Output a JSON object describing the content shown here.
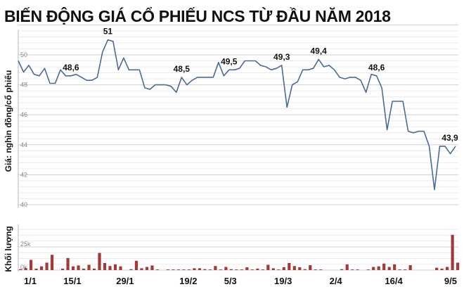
{
  "chart_data": [
    {
      "type": "line",
      "title": "BIẾN ĐỘNG GIÁ CỔ PHIẾU NCS TỪ ĐẦU NĂM 2018",
      "ylabel": "Giá: nghìn đồng/cổ phiếu",
      "ylim": [
        40,
        52
      ],
      "yticks": [
        40,
        42,
        44,
        46,
        48,
        50
      ],
      "grid": true,
      "line_color": "#4a6b96",
      "values": [
        49.6,
        48.85,
        49.3,
        48.7,
        48.6,
        49.1,
        48.1,
        48.1,
        49.0,
        48.6,
        48.6,
        48.7,
        48.5,
        48.3,
        48.3,
        48.5,
        50.2,
        51.0,
        50.9,
        49.0,
        49.8,
        49.0,
        49.0,
        49.0,
        47.8,
        47.7,
        48.0,
        48.0,
        48.0,
        47.9,
        47.5,
        48.5,
        48.0,
        48.3,
        48.5,
        48.5,
        48.5,
        48.5,
        49.5,
        48.6,
        49.0,
        49.0,
        49.1,
        49.6,
        49.6,
        49.6,
        49.3,
        49.2,
        49.0,
        49.1,
        49.3,
        46.5,
        48.0,
        48.2,
        49.0,
        49.0,
        49.1,
        49.7,
        49.2,
        49.3,
        49.0,
        48.5,
        48.4,
        48.5,
        48.5,
        48.3,
        47.5,
        48.7,
        48.6,
        47.8,
        45.0,
        46.9,
        46.9,
        46.9,
        44.9,
        44.8,
        44.9,
        44.9,
        43.9,
        41.0,
        43.9,
        43.9,
        43.4,
        43.9
      ],
      "annotations": [
        {
          "label": "48,6"
        },
        {
          "label": "51"
        },
        {
          "label": "48,5"
        },
        {
          "label": "49,5"
        },
        {
          "label": "49,3"
        },
        {
          "label": "49,4"
        },
        {
          "label": "48,6"
        },
        {
          "label": "43,9"
        }
      ]
    },
    {
      "type": "bar",
      "ylabel": "Khối lượng",
      "ytick_labels": [
        "0k",
        "25k"
      ],
      "bar_color": "#a33a3a",
      "values": [
        1,
        2.3,
        11,
        1.6,
        4,
        8,
        16.5,
        0,
        1.6,
        13,
        4,
        5,
        1.6,
        5.7,
        1.6,
        18.5,
        7.6,
        4.4,
        6.2,
        4,
        0,
        1,
        10,
        2,
        3.4,
        5,
        0.7,
        0,
        0.7,
        0.7,
        0.7,
        0.7,
        0.7,
        2,
        2,
        1,
        0.7,
        4.4,
        0.7,
        3.4,
        1,
        0.7,
        0.7,
        3,
        0.7,
        1.6,
        0.7,
        5.7,
        2,
        0.7,
        3,
        7.6,
        4.4,
        3,
        1,
        5.3,
        0.7,
        0.7,
        0,
        0,
        0,
        1,
        6.2,
        0.7,
        0.7,
        0,
        0.7,
        3.4,
        4,
        7,
        3.4,
        6.2,
        0.7,
        0.7,
        5.3,
        0,
        0,
        0,
        0,
        2.5,
        1.6,
        3.4,
        38,
        8
      ],
      "xtick_labels": [
        "1/1",
        "15/1",
        "29/1",
        "19/2",
        "5/3",
        "19/3",
        "2/4",
        "16/4",
        "9/5"
      ]
    }
  ]
}
